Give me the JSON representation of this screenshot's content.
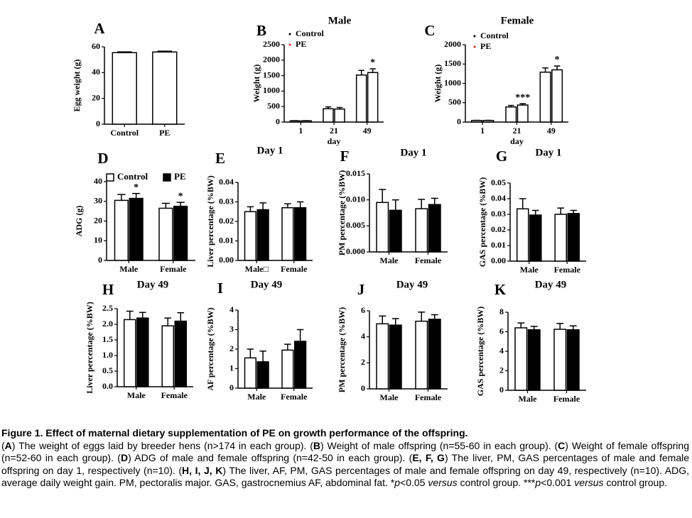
{
  "chart_data": [
    {
      "type": "bar",
      "letter": "A",
      "ylabel": "Egg weight (g)",
      "categories": [
        "Control",
        "PE"
      ],
      "bar_fill": "#ffffff",
      "series": [
        {
          "name": "Egg weight",
          "color": "#000000",
          "values": [
            55.5,
            56
          ],
          "error": [
            0.6,
            0.6
          ]
        }
      ],
      "ylim": [
        0,
        60
      ],
      "yticks": [
        0,
        20,
        40,
        60
      ]
    },
    {
      "type": "bar",
      "letter": "B",
      "title": "Male",
      "ylabel": "Weight (g)",
      "xlabel": "day",
      "categories": [
        "1",
        "21",
        "49"
      ],
      "bar_fill": "#ffffff",
      "legend": "top-left",
      "legend_marker": "dot",
      "series": [
        {
          "name": "Control",
          "color": "#000000",
          "values": [
            40,
            430,
            1520
          ],
          "error": [
            5,
            60,
            150
          ]
        },
        {
          "name": "PE",
          "color": "#d62728",
          "values": [
            40,
            420,
            1600
          ],
          "error": [
            5,
            50,
            120
          ]
        }
      ],
      "annotations": [
        {
          "text": "*",
          "category": 2,
          "series": 1
        }
      ],
      "ylim": [
        0,
        2500
      ],
      "yticks": [
        0,
        500,
        1000,
        1500,
        2000,
        2500
      ]
    },
    {
      "type": "bar",
      "letter": "C",
      "title": "Female",
      "ylabel": "Weight (g)",
      "xlabel": "day",
      "categories": [
        "1",
        "21",
        "49"
      ],
      "bar_fill": "#ffffff",
      "legend": "top-left",
      "legend_marker": "dot",
      "series": [
        {
          "name": "Control",
          "color": "#000000",
          "values": [
            40,
            390,
            1290
          ],
          "error": [
            5,
            40,
            110
          ]
        },
        {
          "name": "PE",
          "color": "#d62728",
          "values": [
            40,
            440,
            1350
          ],
          "error": [
            5,
            35,
            100
          ]
        }
      ],
      "annotations": [
        {
          "text": "***",
          "category": 1,
          "series": 1
        },
        {
          "text": "*",
          "category": 2,
          "series": 1
        }
      ],
      "ylim": [
        0,
        2000
      ],
      "yticks": [
        0,
        500,
        1000,
        1500,
        2000
      ]
    },
    {
      "type": "bar",
      "letter": "D",
      "ylabel": "ADG (g)",
      "categories": [
        "Male",
        "Female"
      ],
      "legend": "top-left",
      "legend_marker": "square",
      "series": [
        {
          "name": "Control",
          "color": "#ffffff",
          "values": [
            30.5,
            26.5
          ],
          "error": [
            3,
            2.5
          ]
        },
        {
          "name": "PE",
          "color": "#000000",
          "values": [
            31.5,
            27.5
          ],
          "error": [
            2.5,
            2
          ]
        }
      ],
      "annotations": [
        {
          "text": "*",
          "category": 0,
          "series": 1
        },
        {
          "text": "*",
          "category": 1,
          "series": 1
        }
      ],
      "ylim": [
        0,
        40
      ],
      "yticks": [
        0,
        10,
        20,
        30,
        40
      ]
    },
    {
      "type": "bar",
      "letter": "E",
      "title": "Day 1",
      "ylabel": "Liver percentage (%BW)",
      "categories": [
        "Male□",
        "Female"
      ],
      "series": [
        {
          "name": "Control",
          "color": "#ffffff",
          "values": [
            0.025,
            0.027
          ],
          "error": [
            0.0025,
            0.002
          ]
        },
        {
          "name": "PE",
          "color": "#000000",
          "values": [
            0.026,
            0.027
          ],
          "error": [
            0.0035,
            0.003
          ]
        }
      ],
      "ylim": [
        0,
        0.04
      ],
      "yticks": [
        {
          "value": 0,
          "label": "0.00"
        },
        {
          "value": 0.01,
          "label": "0.01"
        },
        {
          "value": 0.02,
          "label": "0.02"
        },
        {
          "value": 0.03,
          "label": "0.03"
        },
        {
          "value": 0.04,
          "label": "0.04"
        }
      ]
    },
    {
      "type": "bar",
      "letter": "F",
      "title": "Day 1",
      "ylabel": "PM percentage (%BW)",
      "categories": [
        "Male",
        "Female"
      ],
      "series": [
        {
          "name": "Control",
          "color": "#ffffff",
          "values": [
            0.0095,
            0.0083
          ],
          "error": [
            0.0025,
            0.0018
          ]
        },
        {
          "name": "PE",
          "color": "#000000",
          "values": [
            0.008,
            0.0091
          ],
          "error": [
            0.002,
            0.0012
          ]
        }
      ],
      "ylim": [
        0,
        0.015
      ],
      "yticks": [
        {
          "value": 0,
          "label": "0.000"
        },
        {
          "value": 0.005,
          "label": "0.005"
        },
        {
          "value": 0.01,
          "label": "0.010"
        },
        {
          "value": 0.015,
          "label": "0.015"
        }
      ]
    },
    {
      "type": "bar",
      "letter": "G",
      "title": "Day 1",
      "ylabel": "GAS percentage (%BW)",
      "categories": [
        "Male",
        "Female"
      ],
      "series": [
        {
          "name": "Control",
          "color": "#ffffff",
          "values": [
            0.0335,
            0.03
          ],
          "error": [
            0.0065,
            0.004
          ]
        },
        {
          "name": "PE",
          "color": "#000000",
          "values": [
            0.0295,
            0.0305
          ],
          "error": [
            0.003,
            0.002
          ]
        }
      ],
      "ylim": [
        0,
        0.05
      ],
      "yticks": [
        {
          "value": 0,
          "label": "0.00"
        },
        {
          "value": 0.01,
          "label": "0.01"
        },
        {
          "value": 0.02,
          "label": "0.02"
        },
        {
          "value": 0.03,
          "label": "0.03"
        },
        {
          "value": 0.04,
          "label": "0.04"
        },
        {
          "value": 0.05,
          "label": "0.05"
        }
      ]
    },
    {
      "type": "bar",
      "letter": "H",
      "title": "Day 49",
      "ylabel": "Liver percentage (%BW)",
      "categories": [
        "Male",
        "Female"
      ],
      "series": [
        {
          "name": "Control",
          "color": "#ffffff",
          "values": [
            2.15,
            1.95
          ],
          "error": [
            0.27,
            0.25
          ]
        },
        {
          "name": "PE",
          "color": "#000000",
          "values": [
            2.2,
            2.1
          ],
          "error": [
            0.18,
            0.27
          ]
        }
      ],
      "ylim": [
        0,
        2.5
      ],
      "yticks": [
        {
          "value": 0,
          "label": "0.0"
        },
        {
          "value": 0.5,
          "label": "0.5"
        },
        {
          "value": 1,
          "label": "1.0"
        },
        {
          "value": 1.5,
          "label": "1.5"
        },
        {
          "value": 2,
          "label": "2.0"
        },
        {
          "value": 2.5,
          "label": "2.5"
        }
      ]
    },
    {
      "type": "bar",
      "letter": "I",
      "title": "Day 49",
      "ylabel": "AF percentage (%BW)",
      "categories": [
        "Male",
        "Female"
      ],
      "series": [
        {
          "name": "Control",
          "color": "#ffffff",
          "values": [
            1.55,
            1.95
          ],
          "error": [
            0.45,
            0.3
          ]
        },
        {
          "name": "PE",
          "color": "#000000",
          "values": [
            1.35,
            2.4
          ],
          "error": [
            0.55,
            0.6
          ]
        }
      ],
      "ylim": [
        0,
        4
      ],
      "yticks": [
        0,
        1,
        2,
        3,
        4
      ]
    },
    {
      "type": "bar",
      "letter": "J",
      "title": "Day 49",
      "ylabel": "PM percentage (%BW)",
      "categories": [
        "Male",
        "Female"
      ],
      "series": [
        {
          "name": "Control",
          "color": "#ffffff",
          "values": [
            5,
            5.2
          ],
          "error": [
            0.6,
            0.7
          ]
        },
        {
          "name": "PE",
          "color": "#000000",
          "values": [
            4.9,
            5.35
          ],
          "error": [
            0.5,
            0.35
          ]
        }
      ],
      "ylim": [
        0,
        6
      ],
      "yticks": [
        0,
        2,
        4,
        6
      ]
    },
    {
      "type": "bar",
      "letter": "K",
      "title": "Day 49",
      "ylabel": "GAS percentage (%BW)",
      "categories": [
        "Male",
        "Female"
      ],
      "series": [
        {
          "name": "Control",
          "color": "#ffffff",
          "values": [
            6.4,
            6.25
          ],
          "error": [
            0.5,
            0.6
          ]
        },
        {
          "name": "PE",
          "color": "#000000",
          "values": [
            6.2,
            6.2
          ],
          "error": [
            0.35,
            0.4
          ]
        }
      ],
      "ylim": [
        0,
        8
      ],
      "yticks": [
        0,
        2,
        4,
        6,
        8
      ]
    }
  ],
  "caption": {
    "title": "Figure 1. Effect of maternal dietary supplementation of PE on growth performance of the offspring.",
    "segments": [
      {
        "text": "(",
        "style": ""
      },
      {
        "text": "A",
        "style": "b"
      },
      {
        "text": ") The weight of eggs laid by breeder hens (n>174 in each group). (",
        "style": ""
      },
      {
        "text": "B",
        "style": "b"
      },
      {
        "text": ") Weight of male offspring (n=55-60 in each group). (",
        "style": ""
      },
      {
        "text": "C",
        "style": "b"
      },
      {
        "text": ") Weight of female offspring (n=52-60 in each group). (",
        "style": ""
      },
      {
        "text": "D",
        "style": "b"
      },
      {
        "text": ") ADG of male and female offspring (n=42-50 in each group). (",
        "style": ""
      },
      {
        "text": "E, F, G",
        "style": "b"
      },
      {
        "text": ") The liver, PM, GAS percentages of male and female offspring on day 1, respectively (n=10). (",
        "style": ""
      },
      {
        "text": "H, I, J, K",
        "style": "b"
      },
      {
        "text": ") The liver, AF, PM, GAS percentages of male and female offspring on day 49, respectively (n=10). ADG, average daily weight gain. PM, pectoralis major. GAS, gastrocnemius AF, abdominal fat. *",
        "style": ""
      },
      {
        "text": "p",
        "style": "i"
      },
      {
        "text": "<0.05 ",
        "style": ""
      },
      {
        "text": "versus",
        "style": "i"
      },
      {
        "text": " control group. ***",
        "style": ""
      },
      {
        "text": "p",
        "style": "i"
      },
      {
        "text": "<0.001 ",
        "style": ""
      },
      {
        "text": "versus",
        "style": "i"
      },
      {
        "text": " control group.",
        "style": ""
      }
    ]
  }
}
